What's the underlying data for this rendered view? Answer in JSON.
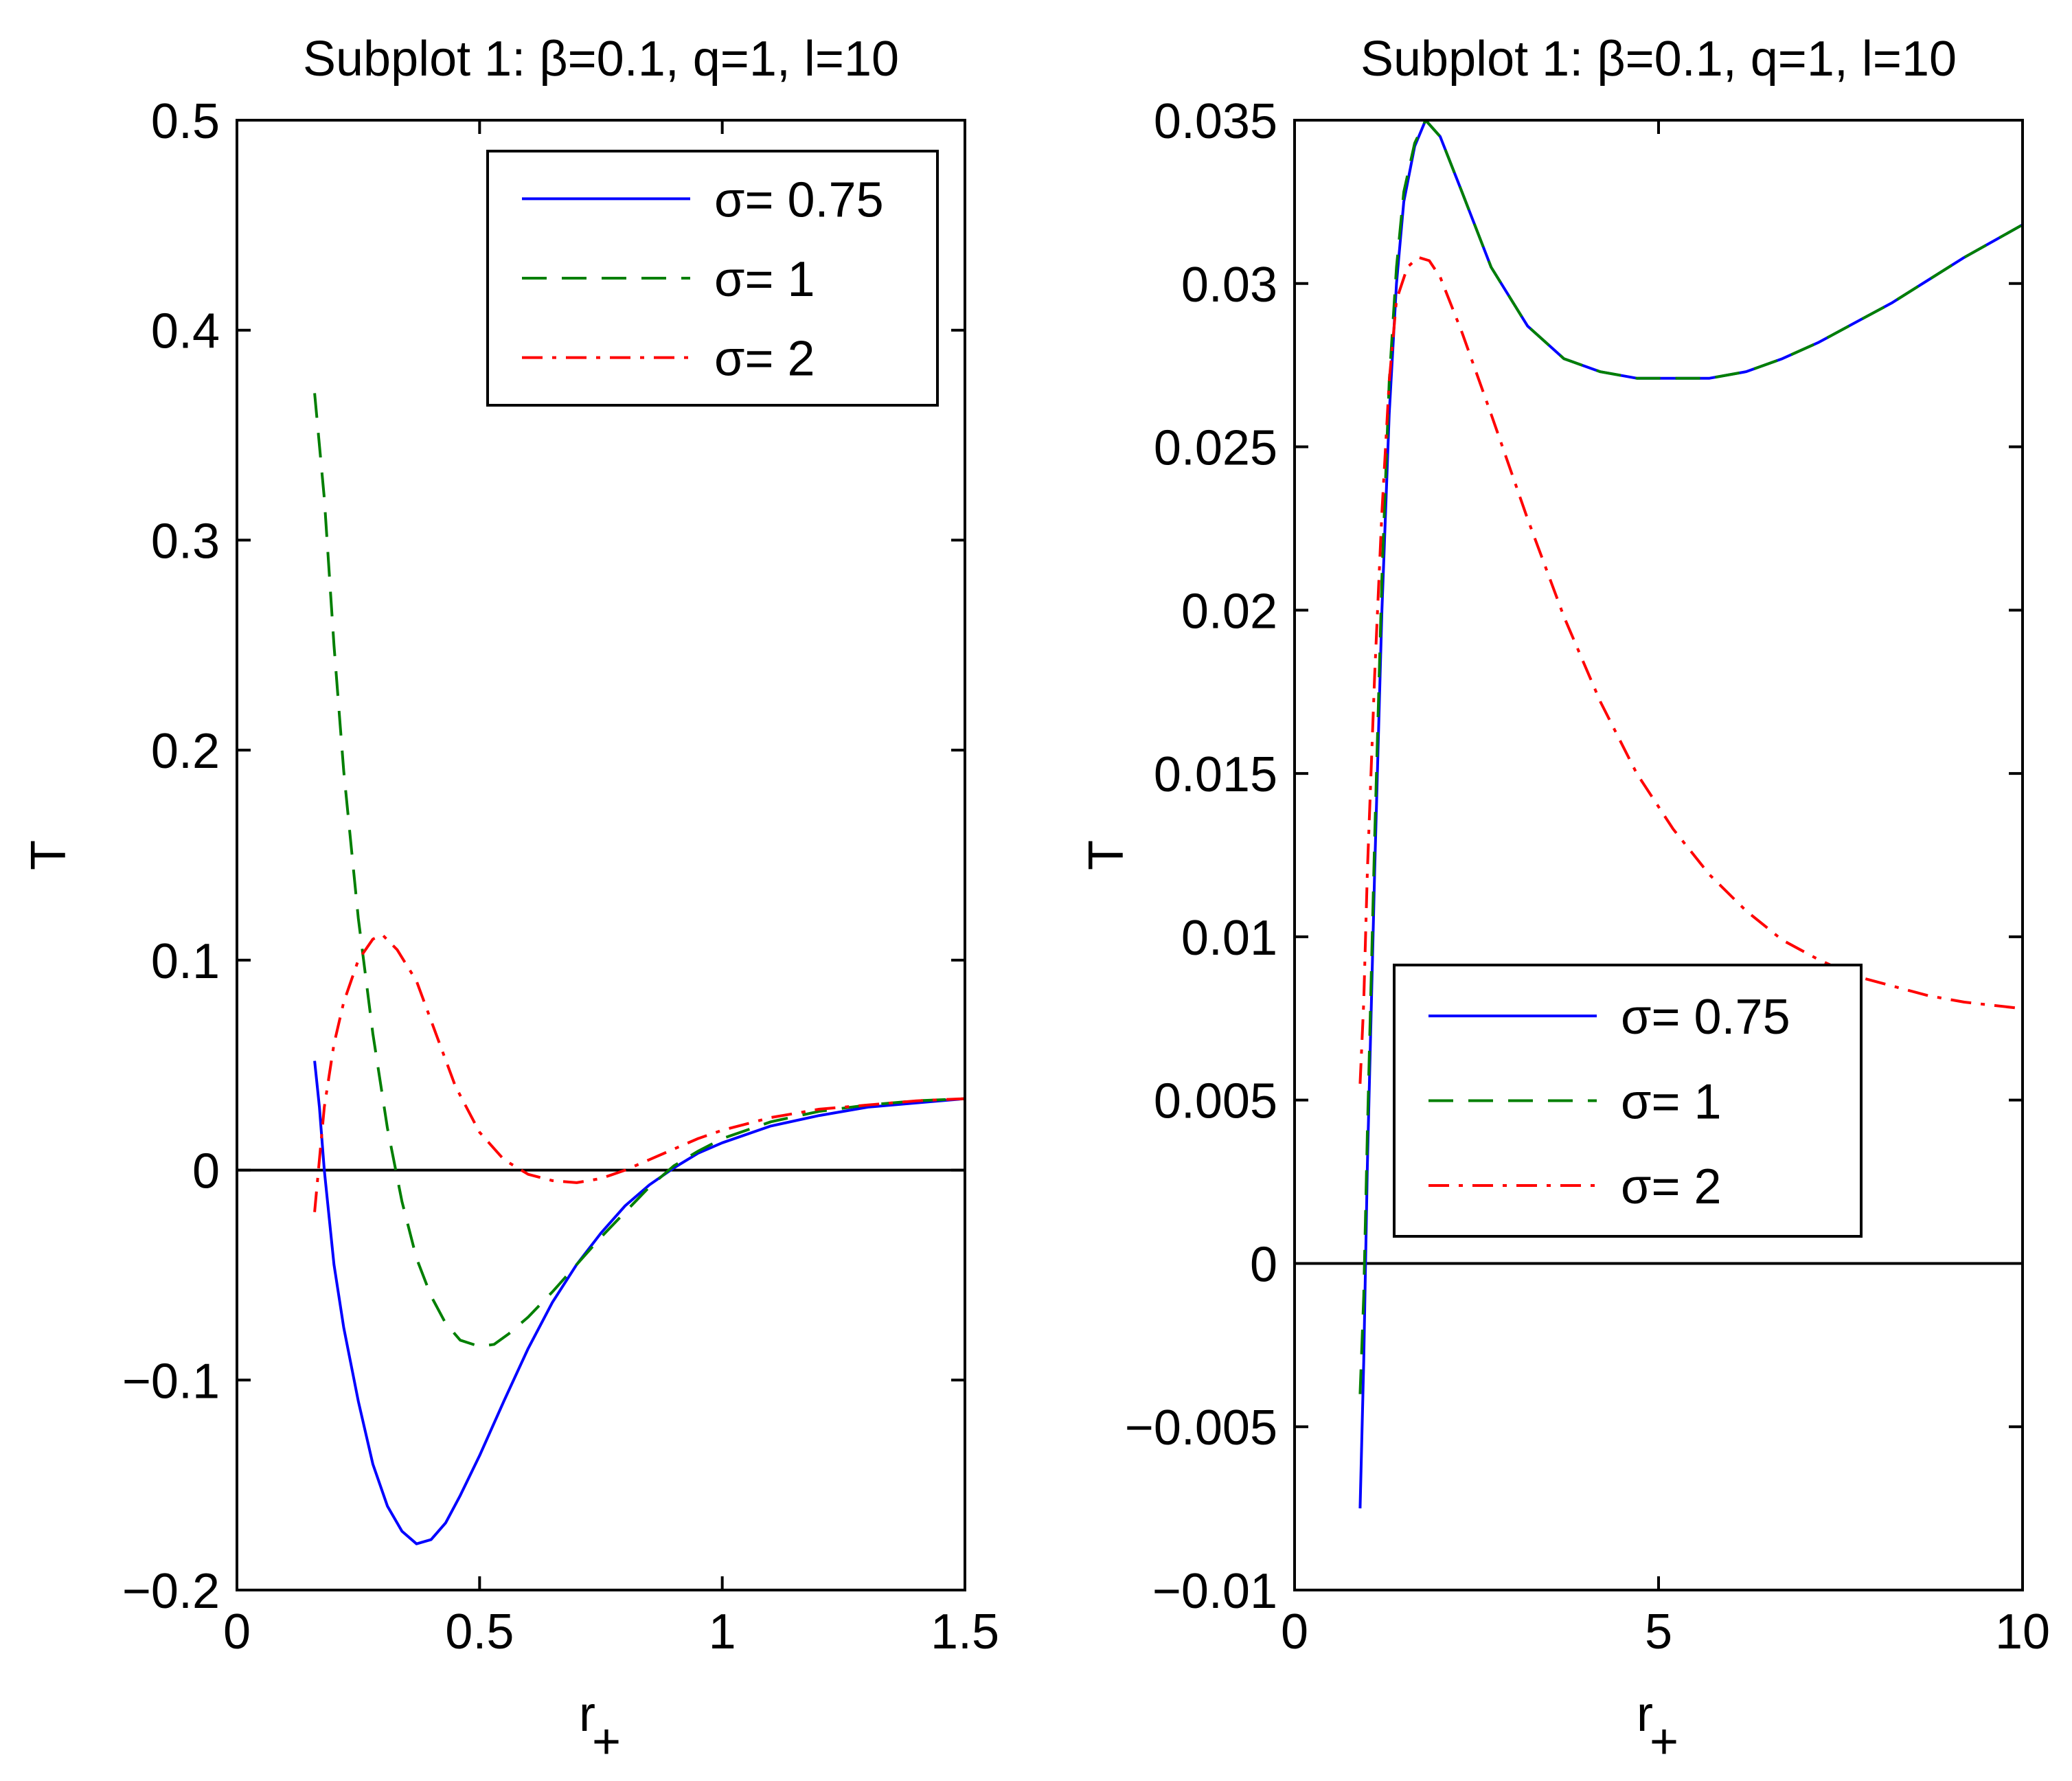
{
  "chart_data": [
    {
      "type": "line",
      "title": "Subplot 1: β=0.1, q=1, l=10",
      "xlabel": "r",
      "xlabel_subscript": "+",
      "ylabel": "T",
      "xlim": [
        0,
        1.5
      ],
      "ylim": [
        -0.2,
        0.5
      ],
      "xticks": [
        0,
        0.5,
        1,
        1.5
      ],
      "xtick_labels": [
        "0",
        "0.5",
        "1",
        "1.5"
      ],
      "yticks": [
        -0.2,
        -0.1,
        0,
        0.1,
        0.2,
        0.3,
        0.4,
        0.5
      ],
      "ytick_labels": [
        "−0.2",
        "−0.1",
        "0",
        "0.1",
        "0.2",
        "0.3",
        "0.4",
        "0.5"
      ],
      "zero_line": true,
      "legend_position": "top-right",
      "series": [
        {
          "name": "σ= 0.75",
          "color": "#0000ff",
          "dash": "solid",
          "points": [
            [
              0.16,
              0.052
            ],
            [
              0.17,
              0.03
            ],
            [
              0.18,
              0.0
            ],
            [
              0.2,
              -0.045
            ],
            [
              0.22,
              -0.075
            ],
            [
              0.25,
              -0.11
            ],
            [
              0.28,
              -0.14
            ],
            [
              0.31,
              -0.16
            ],
            [
              0.34,
              -0.172
            ],
            [
              0.37,
              -0.178
            ],
            [
              0.4,
              -0.176
            ],
            [
              0.43,
              -0.168
            ],
            [
              0.46,
              -0.155
            ],
            [
              0.5,
              -0.136
            ],
            [
              0.55,
              -0.11
            ],
            [
              0.6,
              -0.085
            ],
            [
              0.65,
              -0.063
            ],
            [
              0.7,
              -0.045
            ],
            [
              0.75,
              -0.03
            ],
            [
              0.8,
              -0.017
            ],
            [
              0.85,
              -0.007
            ],
            [
              0.9,
              0.001
            ],
            [
              0.95,
              0.008
            ],
            [
              1.0,
              0.013
            ],
            [
              1.1,
              0.021
            ],
            [
              1.2,
              0.026
            ],
            [
              1.3,
              0.03
            ],
            [
              1.4,
              0.032
            ],
            [
              1.5,
              0.034
            ]
          ]
        },
        {
          "name": "σ= 1",
          "color": "#007f00",
          "dash": "dashed",
          "points": [
            [
              0.16,
              0.37
            ],
            [
              0.18,
              0.32
            ],
            [
              0.2,
              0.25
            ],
            [
              0.22,
              0.19
            ],
            [
              0.25,
              0.12
            ],
            [
              0.28,
              0.065
            ],
            [
              0.31,
              0.02
            ],
            [
              0.34,
              -0.015
            ],
            [
              0.37,
              -0.042
            ],
            [
              0.4,
              -0.06
            ],
            [
              0.43,
              -0.073
            ],
            [
              0.46,
              -0.081
            ],
            [
              0.5,
              -0.084
            ],
            [
              0.53,
              -0.083
            ],
            [
              0.56,
              -0.078
            ],
            [
              0.6,
              -0.07
            ],
            [
              0.65,
              -0.058
            ],
            [
              0.7,
              -0.045
            ],
            [
              0.75,
              -0.032
            ],
            [
              0.8,
              -0.02
            ],
            [
              0.85,
              -0.008
            ],
            [
              0.9,
              0.002
            ],
            [
              0.95,
              0.009
            ],
            [
              1.0,
              0.015
            ],
            [
              1.1,
              0.023
            ],
            [
              1.2,
              0.028
            ],
            [
              1.3,
              0.031
            ],
            [
              1.4,
              0.033
            ],
            [
              1.5,
              0.034
            ]
          ]
        },
        {
          "name": "σ= 2",
          "color": "#ff0000",
          "dash": "dashdot",
          "points": [
            [
              0.16,
              -0.02
            ],
            [
              0.17,
              0.005
            ],
            [
              0.18,
              0.03
            ],
            [
              0.2,
              0.06
            ],
            [
              0.22,
              0.08
            ],
            [
              0.25,
              0.1
            ],
            [
              0.28,
              0.11
            ],
            [
              0.3,
              0.112
            ],
            [
              0.33,
              0.105
            ],
            [
              0.37,
              0.09
            ],
            [
              0.41,
              0.065
            ],
            [
              0.45,
              0.04
            ],
            [
              0.5,
              0.018
            ],
            [
              0.55,
              0.005
            ],
            [
              0.6,
              -0.002
            ],
            [
              0.65,
              -0.005
            ],
            [
              0.7,
              -0.006
            ],
            [
              0.75,
              -0.004
            ],
            [
              0.8,
              0.0
            ],
            [
              0.85,
              0.005
            ],
            [
              0.9,
              0.01
            ],
            [
              0.95,
              0.015
            ],
            [
              1.0,
              0.019
            ],
            [
              1.1,
              0.025
            ],
            [
              1.2,
              0.029
            ],
            [
              1.3,
              0.031
            ],
            [
              1.4,
              0.033
            ],
            [
              1.5,
              0.034
            ]
          ]
        }
      ]
    },
    {
      "type": "line",
      "title": "Subplot 1: β=0.1, q=1, l=10",
      "xlabel": "r",
      "xlabel_subscript": "+",
      "ylabel": "T",
      "xlim": [
        0,
        10
      ],
      "ylim": [
        -0.01,
        0.035
      ],
      "xticks": [
        0,
        5,
        10
      ],
      "xtick_labels": [
        "0",
        "5",
        "10"
      ],
      "yticks": [
        -0.01,
        -0.005,
        0,
        0.005,
        0.01,
        0.015,
        0.02,
        0.025,
        0.03,
        0.035
      ],
      "ytick_labels": [
        "−0.01",
        "−0.005",
        "0",
        "0.005",
        "0.01",
        "0.015",
        "0.02",
        "0.025",
        "0.03",
        "0.035"
      ],
      "zero_line": true,
      "legend_position": "bottom-left",
      "series": [
        {
          "name": "σ= 0.75",
          "color": "#0000ff",
          "dash": "solid",
          "points": [
            [
              0.9,
              -0.0075
            ],
            [
              0.95,
              -0.003
            ],
            [
              1.0,
              0.003
            ],
            [
              1.1,
              0.012
            ],
            [
              1.2,
              0.02
            ],
            [
              1.3,
              0.026
            ],
            [
              1.4,
              0.03
            ],
            [
              1.5,
              0.0325
            ],
            [
              1.65,
              0.0342
            ],
            [
              1.8,
              0.035
            ],
            [
              2.0,
              0.0345
            ],
            [
              2.3,
              0.0328
            ],
            [
              2.7,
              0.0305
            ],
            [
              3.2,
              0.0287
            ],
            [
              3.7,
              0.0277
            ],
            [
              4.2,
              0.0273
            ],
            [
              4.7,
              0.0271
            ],
            [
              5.2,
              0.0271
            ],
            [
              5.7,
              0.0271
            ],
            [
              6.2,
              0.0273
            ],
            [
              6.7,
              0.0277
            ],
            [
              7.2,
              0.0282
            ],
            [
              7.7,
              0.0288
            ],
            [
              8.2,
              0.0294
            ],
            [
              8.7,
              0.0301
            ],
            [
              9.2,
              0.0308
            ],
            [
              9.6,
              0.0313
            ],
            [
              10.0,
              0.0318
            ]
          ]
        },
        {
          "name": "σ= 1",
          "color": "#007f00",
          "dash": "dashed",
          "points": [
            [
              0.9,
              -0.004
            ],
            [
              0.95,
              -0.001
            ],
            [
              1.0,
              0.004
            ],
            [
              1.1,
              0.013
            ],
            [
              1.2,
              0.021
            ],
            [
              1.3,
              0.027
            ],
            [
              1.4,
              0.0305
            ],
            [
              1.5,
              0.0328
            ],
            [
              1.65,
              0.0343
            ],
            [
              1.8,
              0.035
            ],
            [
              2.0,
              0.0345
            ],
            [
              2.3,
              0.0328
            ],
            [
              2.7,
              0.0305
            ],
            [
              3.2,
              0.0287
            ],
            [
              3.7,
              0.0277
            ],
            [
              4.2,
              0.0273
            ],
            [
              4.7,
              0.0271
            ],
            [
              5.2,
              0.0271
            ],
            [
              5.7,
              0.0271
            ],
            [
              6.2,
              0.0273
            ],
            [
              6.7,
              0.0277
            ],
            [
              7.2,
              0.0282
            ],
            [
              7.7,
              0.0288
            ],
            [
              8.2,
              0.0294
            ],
            [
              8.7,
              0.0301
            ],
            [
              9.2,
              0.0308
            ],
            [
              9.6,
              0.0313
            ],
            [
              10.0,
              0.0318
            ]
          ]
        },
        {
          "name": "σ= 2",
          "color": "#ff0000",
          "dash": "dashdot",
          "points": [
            [
              0.9,
              0.0055
            ],
            [
              0.95,
              0.008
            ],
            [
              1.0,
              0.012
            ],
            [
              1.1,
              0.018
            ],
            [
              1.2,
              0.023
            ],
            [
              1.3,
              0.027
            ],
            [
              1.4,
              0.0295
            ],
            [
              1.55,
              0.0305
            ],
            [
              1.7,
              0.0308
            ],
            [
              1.85,
              0.0307
            ],
            [
              2.0,
              0.0302
            ],
            [
              2.3,
              0.0285
            ],
            [
              2.7,
              0.026
            ],
            [
              3.2,
              0.0228
            ],
            [
              3.7,
              0.0198
            ],
            [
              4.2,
              0.0172
            ],
            [
              4.7,
              0.015
            ],
            [
              5.2,
              0.0133
            ],
            [
              5.7,
              0.0119
            ],
            [
              6.2,
              0.0108
            ],
            [
              6.7,
              0.0099
            ],
            [
              7.2,
              0.0093
            ],
            [
              7.7,
              0.0088
            ],
            [
              8.2,
              0.0085
            ],
            [
              8.7,
              0.0082
            ],
            [
              9.2,
              0.008
            ],
            [
              10.0,
              0.0078
            ]
          ]
        }
      ]
    }
  ]
}
